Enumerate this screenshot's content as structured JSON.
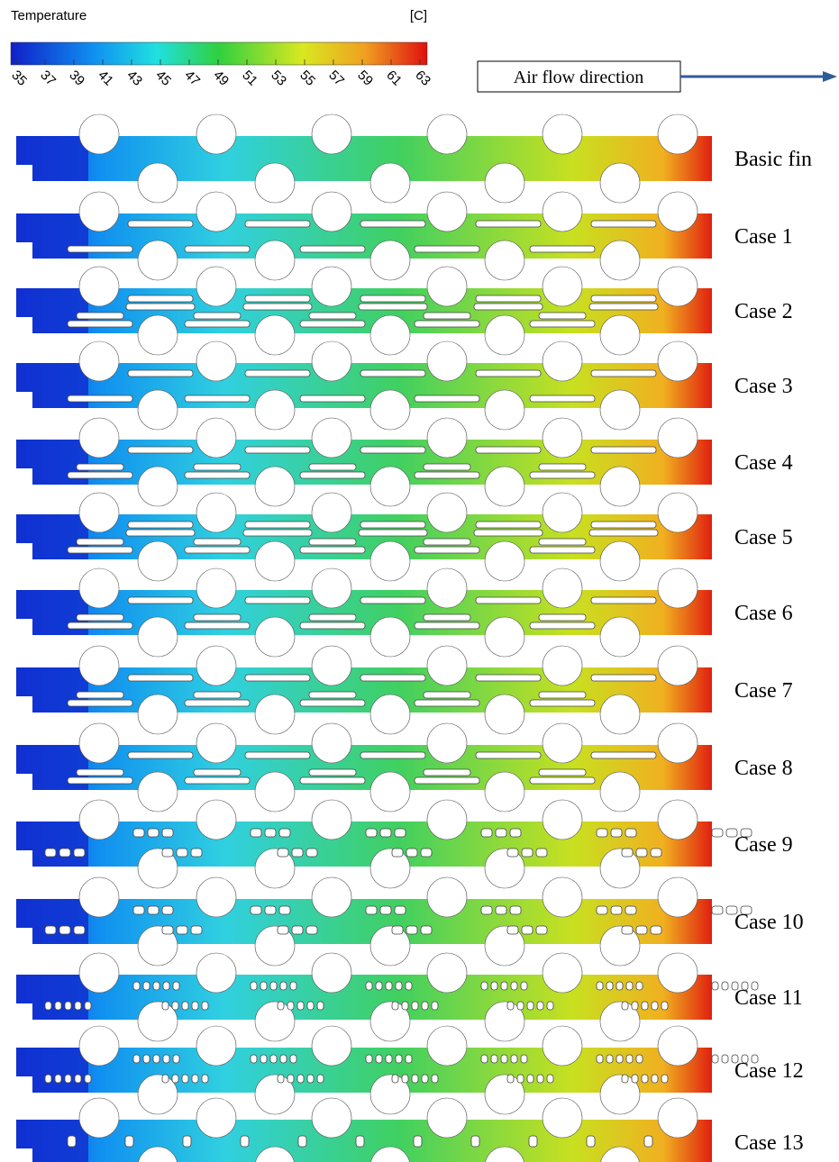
{
  "colorbar": {
    "title": "Temperature",
    "unit": "[C]",
    "ticks": [
      35,
      37,
      39,
      41,
      43,
      45,
      47,
      49,
      51,
      53,
      55,
      57,
      59,
      61,
      63
    ]
  },
  "annotation": "Air flow direction",
  "rows": [
    {
      "label": "Basic fin"
    },
    {
      "label": "Case 1"
    },
    {
      "label": "Case 2"
    },
    {
      "label": "Case 3"
    },
    {
      "label": "Case 4"
    },
    {
      "label": "Case 5"
    },
    {
      "label": "Case 6"
    },
    {
      "label": "Case 7"
    },
    {
      "label": "Case 8"
    },
    {
      "label": "Case 9"
    },
    {
      "label": "Case 10"
    },
    {
      "label": "Case 11"
    },
    {
      "label": "Case 12"
    },
    {
      "label": "Case 13"
    }
  ]
}
